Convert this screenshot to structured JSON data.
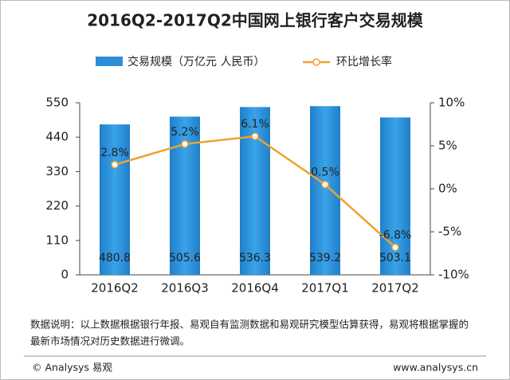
{
  "chart_data": {
    "type": "bar",
    "title": "2016Q2-2017Q2中国网上银行客户交易规模",
    "categories": [
      "2016Q2",
      "2016Q3",
      "2016Q4",
      "2017Q1",
      "2017Q2"
    ],
    "series": [
      {
        "name": "交易规模（万亿元 人民币）",
        "type": "bar",
        "color": "#2b8fd8",
        "values": [
          480.8,
          505.6,
          536.3,
          539.2,
          503.1
        ]
      },
      {
        "name": "环比增长率",
        "type": "line",
        "axis": "y2",
        "color": "#f0a030",
        "values": [
          2.8,
          5.2,
          6.1,
          0.5,
          -6.8
        ],
        "value_labels": [
          "2.8%",
          "5.2%",
          "6.1%",
          "0.5%",
          "-6.8%"
        ]
      }
    ],
    "ylim": [
      0,
      550
    ],
    "yticks": [
      0,
      110,
      220,
      330,
      440,
      550
    ],
    "y2lim": [
      -10,
      10
    ],
    "y2ticks": [
      {
        "value": -10,
        "label": "-10%"
      },
      {
        "value": -5,
        "label": "-5%"
      },
      {
        "value": 0,
        "label": "0%"
      },
      {
        "value": 5,
        "label": "5%"
      },
      {
        "value": 10,
        "label": "10%"
      }
    ],
    "note": [
      "数据说明：以上数据根据银行年报、易观自有监测数据和易观研究模型估算获得，易观将根据掌握的",
      "最新市场情况对历史数据进行微调。"
    ],
    "credit": "© Analysys 易观",
    "website": "www.analysys.cn"
  }
}
